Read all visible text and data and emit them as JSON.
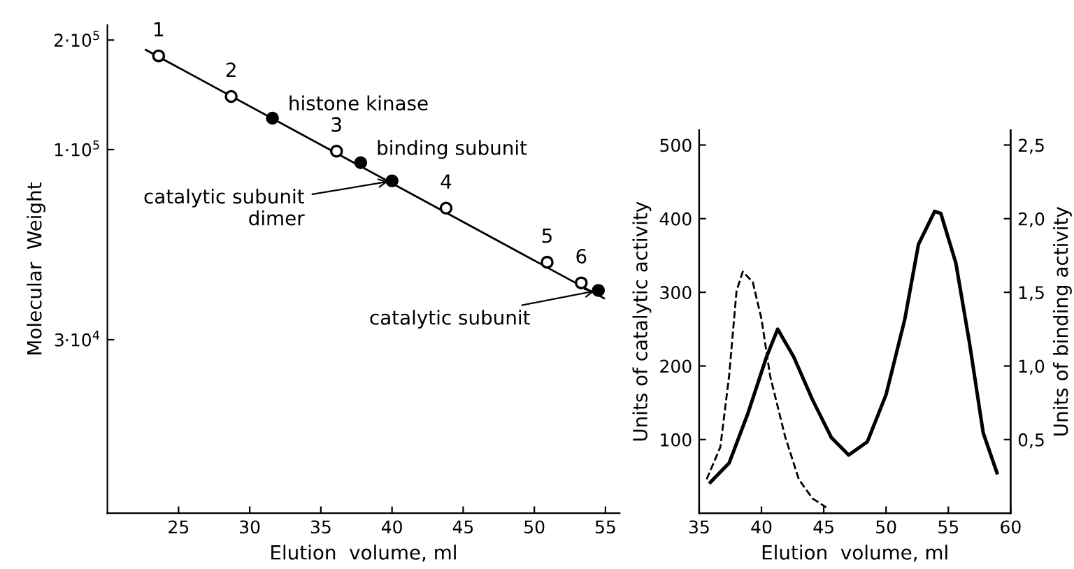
{
  "chart_data": [
    {
      "type": "scatter",
      "xlabel": "Elution  volume, ml",
      "ylabel": "Molecular  Weight",
      "log": "y",
      "grid": false,
      "legend": false,
      "xlim": [
        20,
        56
      ],
      "ylim": [
        10000,
        220000
      ],
      "xticks": [
        25,
        30,
        35,
        40,
        45,
        50,
        55
      ],
      "yticks": [
        {
          "value": 200000,
          "label": "2·10$^{5}$"
        },
        {
          "value": 100000,
          "label": "1·10$^{5}$"
        },
        {
          "value": 30000,
          "label": "3·10$^{4}$"
        }
      ],
      "series": [
        {
          "type": "scatter",
          "marker": "circle",
          "color": "#000000",
          "x": [
            23.6,
            28.7,
            36.1,
            43.8,
            50.9,
            53.3
          ],
          "values": [
            181000,
            140000,
            99000,
            69000,
            49000,
            43000
          ]
        },
        {
          "type": "scatter",
          "marker": "circle",
          "color": "#000000",
          "x": [
            31.6,
            37.8,
            40.0,
            54.5
          ],
          "values": [
            122000,
            92000,
            82000,
            41000
          ]
        },
        {
          "type": "line",
          "marker": "none",
          "line_style": "solid",
          "color": "#000000",
          "x": [
            22.7,
            54.9
          ],
          "values": [
            188000,
            39000
          ]
        }
      ],
      "annotations": [
        {
          "text": "1",
          "x": 23.6,
          "y": 181000
        },
        {
          "text": "2",
          "x": 28.7,
          "y": 140000
        },
        {
          "text": "3",
          "x": 36.1,
          "y": 99000
        },
        {
          "text": "4",
          "x": 43.8,
          "y": 69000
        },
        {
          "text": "5",
          "x": 50.9,
          "y": 49000
        },
        {
          "text": "6",
          "x": 53.3,
          "y": 43000
        },
        {
          "text": "histone kinase",
          "x": 31.6,
          "y": 122000
        },
        {
          "text": "binding subunit",
          "x": 37.8,
          "y": 92000
        },
        {
          "text": "catalytic subunit\ndimer",
          "x": 40.0,
          "y": 82000
        },
        {
          "text": "catalytic subunit",
          "x": 54.5,
          "y": 41000
        }
      ]
    },
    {
      "type": "line",
      "xlabel": "Elution  volume, ml",
      "ylabel": "Units of catalytic activity",
      "y2label": "Units of binding activity",
      "grid": false,
      "legend": false,
      "xlim": [
        35,
        60
      ],
      "ylim": [
        0,
        520
      ],
      "y2lim": [
        0,
        2.6
      ],
      "xticks": [
        35,
        40,
        45,
        50,
        55,
        60
      ],
      "yticks": [
        100,
        200,
        300,
        400,
        500
      ],
      "y2ticks": [
        {
          "value": 0.5,
          "label": "0,5"
        },
        {
          "value": 1.0,
          "label": "1,0"
        },
        {
          "value": 1.5,
          "label": "1,5"
        },
        {
          "value": 2.0,
          "label": "2,0"
        },
        {
          "value": 2.5,
          "label": "2,5"
        }
      ],
      "series": [
        {
          "type": "line",
          "line_style": "solid",
          "color": "#000000",
          "x": [
            35.9,
            37.4,
            38.9,
            40.4,
            41.3,
            42.6,
            44.1,
            45.6,
            47.0,
            48.5,
            50.0,
            51.5,
            52.6,
            53.9,
            54.4,
            55.6,
            56.7,
            57.8,
            58.9
          ],
          "values": [
            42,
            68,
            135,
            212,
            250,
            212,
            154,
            103,
            79,
            97,
            161,
            263,
            365,
            410,
            407,
            340,
            231,
            109,
            55
          ]
        },
        {
          "type": "line",
          "axis": "y2",
          "line_style": "dashed",
          "color": "#000000",
          "x": [
            35.6,
            36.7,
            37.4,
            38.0,
            38.5,
            39.3,
            40.0,
            40.7,
            41.9,
            43.0,
            44.1,
            45.2
          ],
          "values": [
            0.23,
            0.45,
            0.93,
            1.51,
            1.64,
            1.57,
            1.32,
            0.93,
            0.52,
            0.23,
            0.1,
            0.04
          ]
        }
      ]
    }
  ]
}
